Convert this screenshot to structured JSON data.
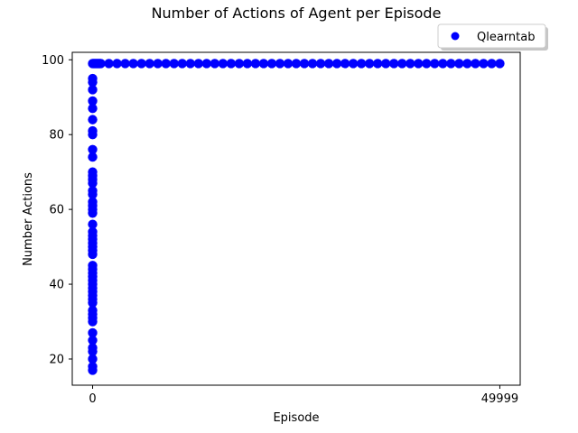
{
  "chart_data": {
    "type": "scatter",
    "title": "Number of Actions of Agent per Episode",
    "xlabel": "Episode",
    "ylabel": "Number Actions",
    "xlim": [
      -2500,
      52500
    ],
    "ylim": [
      13,
      102
    ],
    "x_ticks": [
      {
        "value": 0,
        "label": "0"
      },
      {
        "value": 49999,
        "label": "49999"
      }
    ],
    "y_ticks": [
      {
        "value": 20,
        "label": "20"
      },
      {
        "value": 40,
        "label": "40"
      },
      {
        "value": 60,
        "label": "60"
      },
      {
        "value": 80,
        "label": "80"
      },
      {
        "value": 100,
        "label": "100"
      }
    ],
    "grid": false,
    "legend_position": "top-right, above plot",
    "series": [
      {
        "name": "Qlearntab",
        "color": "#0000ff",
        "marker": "circle",
        "points": [
          [
            0,
            17
          ],
          [
            0,
            18
          ],
          [
            0,
            20
          ],
          [
            0,
            22
          ],
          [
            0,
            23
          ],
          [
            0,
            25
          ],
          [
            0,
            27
          ],
          [
            0,
            30
          ],
          [
            0,
            31
          ],
          [
            0,
            32
          ],
          [
            0,
            33
          ],
          [
            0,
            35
          ],
          [
            0,
            36
          ],
          [
            0,
            37
          ],
          [
            0,
            38
          ],
          [
            0,
            39
          ],
          [
            0,
            40
          ],
          [
            0,
            41
          ],
          [
            0,
            42
          ],
          [
            0,
            43
          ],
          [
            0,
            44
          ],
          [
            0,
            45
          ],
          [
            0,
            48
          ],
          [
            0,
            49
          ],
          [
            0,
            50
          ],
          [
            0,
            51
          ],
          [
            0,
            52
          ],
          [
            0,
            53
          ],
          [
            0,
            54
          ],
          [
            0,
            56
          ],
          [
            0,
            59
          ],
          [
            0,
            60
          ],
          [
            0,
            61
          ],
          [
            0,
            62
          ],
          [
            0,
            64
          ],
          [
            0,
            65
          ],
          [
            0,
            67
          ],
          [
            0,
            68
          ],
          [
            0,
            69
          ],
          [
            0,
            70
          ],
          [
            0,
            74
          ],
          [
            0,
            76
          ],
          [
            0,
            80
          ],
          [
            0,
            81
          ],
          [
            0,
            84
          ],
          [
            0,
            87
          ],
          [
            0,
            89
          ],
          [
            0,
            92
          ],
          [
            0,
            94
          ],
          [
            0,
            95
          ],
          [
            0,
            99
          ],
          [
            100,
            99
          ],
          [
            200,
            99
          ],
          [
            300,
            99
          ],
          [
            400,
            99
          ],
          [
            500,
            99
          ],
          [
            600,
            99
          ],
          [
            700,
            99
          ],
          [
            800,
            99
          ],
          [
            900,
            99
          ],
          [
            1000,
            99
          ],
          [
            2000,
            99
          ],
          [
            3000,
            99
          ],
          [
            4000,
            99
          ],
          [
            5000,
            99
          ],
          [
            6000,
            99
          ],
          [
            7000,
            99
          ],
          [
            8000,
            99
          ],
          [
            9000,
            99
          ],
          [
            10000,
            99
          ],
          [
            11000,
            99
          ],
          [
            12000,
            99
          ],
          [
            13000,
            99
          ],
          [
            14000,
            99
          ],
          [
            15000,
            99
          ],
          [
            16000,
            99
          ],
          [
            17000,
            99
          ],
          [
            18000,
            99
          ],
          [
            19000,
            99
          ],
          [
            20000,
            99
          ],
          [
            21000,
            99
          ],
          [
            22000,
            99
          ],
          [
            23000,
            99
          ],
          [
            24000,
            99
          ],
          [
            25000,
            99
          ],
          [
            26000,
            99
          ],
          [
            27000,
            99
          ],
          [
            28000,
            99
          ],
          [
            29000,
            99
          ],
          [
            30000,
            99
          ],
          [
            31000,
            99
          ],
          [
            32000,
            99
          ],
          [
            33000,
            99
          ],
          [
            34000,
            99
          ],
          [
            35000,
            99
          ],
          [
            36000,
            99
          ],
          [
            37000,
            99
          ],
          [
            38000,
            99
          ],
          [
            39000,
            99
          ],
          [
            40000,
            99
          ],
          [
            41000,
            99
          ],
          [
            42000,
            99
          ],
          [
            43000,
            99
          ],
          [
            44000,
            99
          ],
          [
            45000,
            99
          ],
          [
            46000,
            99
          ],
          [
            47000,
            99
          ],
          [
            48000,
            99
          ],
          [
            49000,
            99
          ],
          [
            49999,
            99
          ]
        ]
      }
    ]
  }
}
